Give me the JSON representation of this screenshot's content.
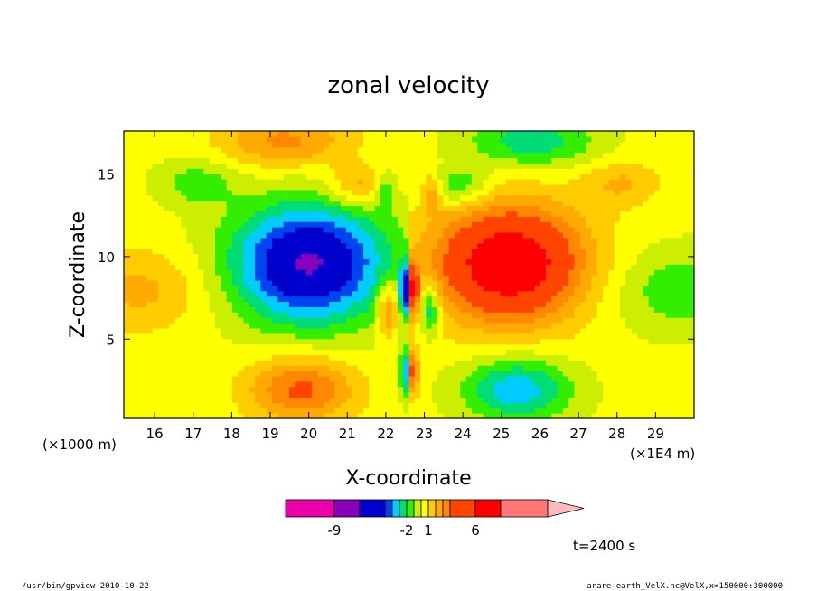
{
  "chart_data": {
    "type": "heatmap",
    "title": "zonal velocity",
    "xlabel": "X-coordinate",
    "ylabel": "Z-coordinate",
    "x_unit_left": "(×1000 m)",
    "x_unit_right": "(×1E4 m)",
    "xlim": [
      15.2,
      30.0
    ],
    "ylim": [
      0.2,
      17.6
    ],
    "x_ticks": [
      16,
      17,
      18,
      19,
      20,
      21,
      22,
      23,
      24,
      25,
      26,
      27,
      28,
      29
    ],
    "y_ticks": [
      5,
      10,
      15
    ],
    "colorbar": {
      "levels": [
        -11,
        -9,
        -7,
        -5,
        -4,
        -3,
        -2,
        -1,
        0,
        1,
        2,
        3,
        4,
        6,
        8
      ],
      "colors": [
        "#ee00aa",
        "#8800bb",
        "#0000cc",
        "#0044ee",
        "#00ccff",
        "#00dd77",
        "#33ee00",
        "#ccee00",
        "#ffff00",
        "#ffcc00",
        "#ffaa00",
        "#ff8800",
        "#ff4400",
        "#ff0000",
        "#ff7777"
      ],
      "extend_color": "#ffbbbb",
      "tick_labels": [
        {
          "label": "-9",
          "level": -9
        },
        {
          "label": "-2",
          "level": -2
        },
        {
          "label": "1",
          "level": 1
        },
        {
          "label": "6",
          "level": 6
        }
      ]
    },
    "time_label": "t=2400 s"
  },
  "footer": {
    "left": "/usr/bin/gpview  2010-10-22",
    "right": "arare-earth_VelX.nc@VelX,x=150000:300000"
  }
}
